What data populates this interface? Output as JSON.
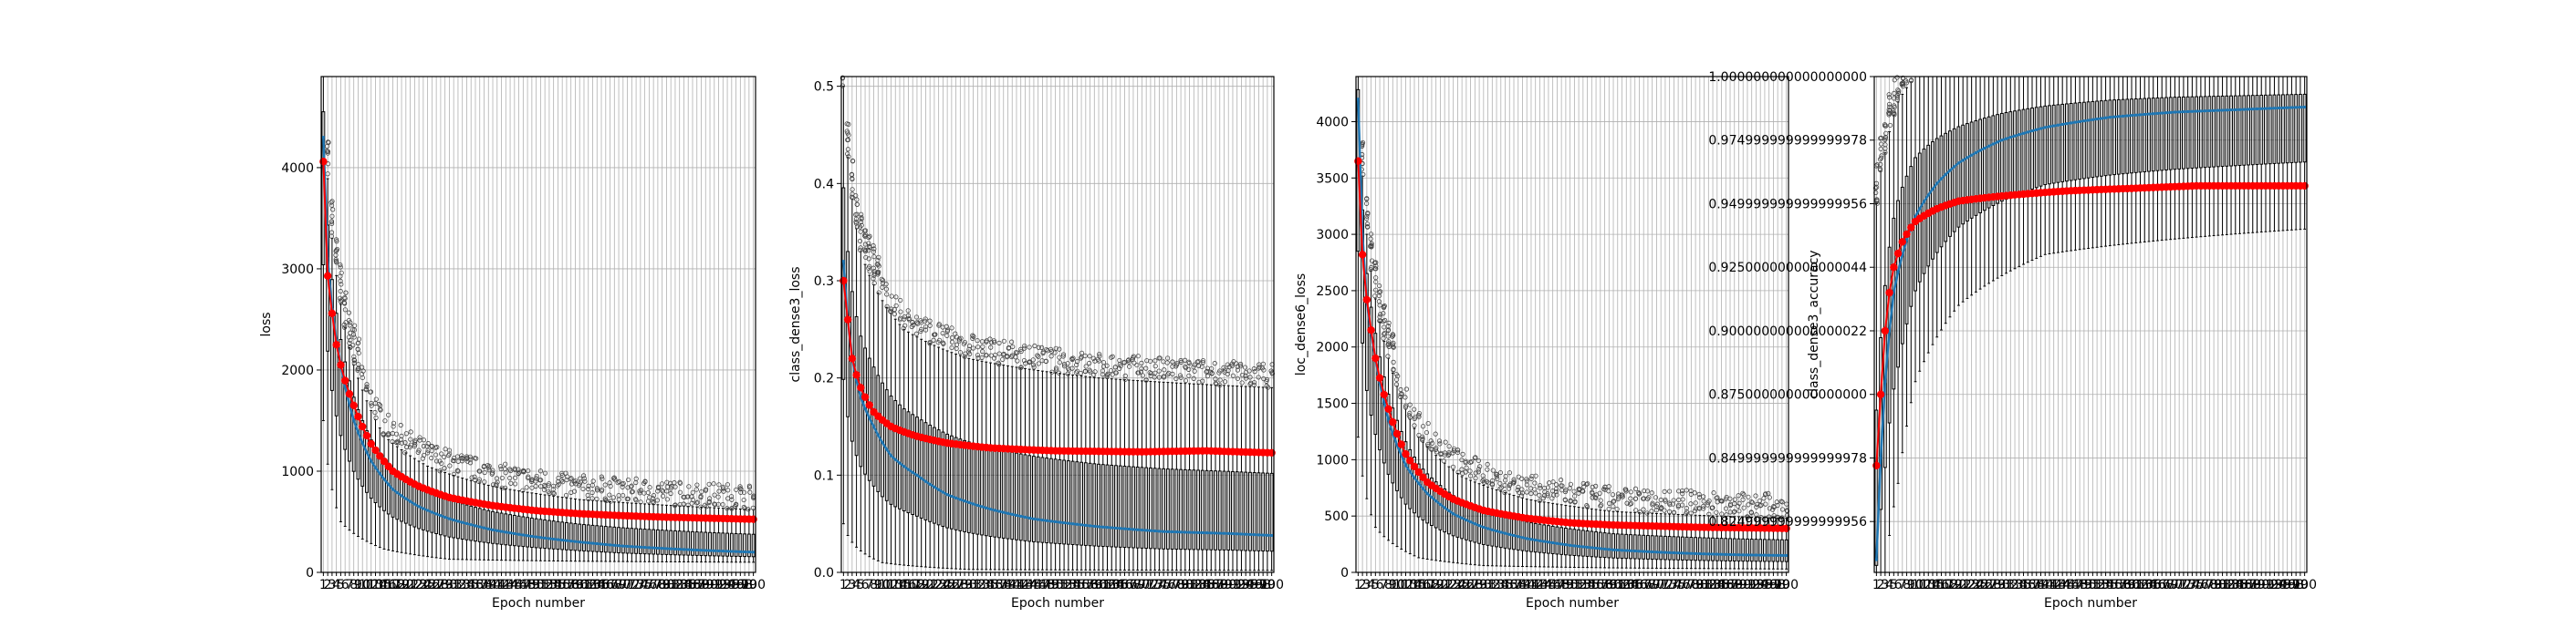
{
  "chart_data": [
    {
      "type": "box",
      "title": "",
      "xlabel": "Epoch number",
      "ylabel": "loss",
      "ylim": [
        0,
        4900
      ],
      "yticks": [
        0,
        1000,
        2000,
        3000,
        4000
      ],
      "n_epochs": 100,
      "series": [
        {
          "name": "",
          "kind": "median",
          "color": "#1f77b4",
          "anchors": [
            [
              1,
              4300
            ],
            [
              2,
              3100
            ],
            [
              3,
              2600
            ],
            [
              5,
              2050
            ],
            [
              8,
              1500
            ],
            [
              12,
              1100
            ],
            [
              17,
              820
            ],
            [
              23,
              650
            ],
            [
              30,
              530
            ],
            [
              40,
              420
            ],
            [
              50,
              350
            ],
            [
              60,
              300
            ],
            [
              70,
              260
            ],
            [
              80,
              235
            ],
            [
              90,
              215
            ],
            [
              100,
              200
            ]
          ]
        },
        {
          "name": "",
          "kind": "mean",
          "color": "#ff0000",
          "anchors": [
            [
              1,
              4060
            ],
            [
              2,
              2930
            ],
            [
              3,
              2560
            ],
            [
              4,
              2250
            ],
            [
              5,
              2050
            ],
            [
              8,
              1650
            ],
            [
              12,
              1270
            ],
            [
              17,
              1000
            ],
            [
              23,
              850
            ],
            [
              30,
              740
            ],
            [
              40,
              660
            ],
            [
              50,
              610
            ],
            [
              60,
              580
            ],
            [
              70,
              560
            ],
            [
              80,
              545
            ],
            [
              90,
              535
            ],
            [
              100,
              525
            ]
          ]
        }
      ],
      "whiskers": {
        "upper": [
          [
            1,
            4900
          ],
          [
            3,
            3300
          ],
          [
            8,
            2050
          ],
          [
            15,
            1350
          ],
          [
            25,
            1050
          ],
          [
            40,
            850
          ],
          [
            60,
            720
          ],
          [
            100,
            620
          ]
        ],
        "lower": [
          [
            1,
            1500
          ],
          [
            5,
            500
          ],
          [
            15,
            230
          ],
          [
            30,
            130
          ],
          [
            60,
            110
          ],
          [
            100,
            100
          ]
        ]
      }
    },
    {
      "type": "box",
      "title": "",
      "xlabel": "Epoch number",
      "ylabel": "class_dense3_loss",
      "ylim": [
        0,
        0.51
      ],
      "yticks": [
        0.0,
        0.1,
        0.2,
        0.3,
        0.4,
        0.5
      ],
      "n_epochs": 100,
      "series": [
        {
          "name": "",
          "kind": "median",
          "color": "#1f77b4",
          "anchors": [
            [
              1,
              0.32
            ],
            [
              2,
              0.26
            ],
            [
              3,
              0.22
            ],
            [
              5,
              0.18
            ],
            [
              8,
              0.15
            ],
            [
              12,
              0.12
            ],
            [
              18,
              0.1
            ],
            [
              25,
              0.08
            ],
            [
              35,
              0.065
            ],
            [
              45,
              0.055
            ],
            [
              60,
              0.047
            ],
            [
              75,
              0.042
            ],
            [
              90,
              0.04
            ],
            [
              100,
              0.038
            ]
          ]
        },
        {
          "name": "",
          "kind": "mean",
          "color": "#ff0000",
          "anchors": [
            [
              1,
              0.3
            ],
            [
              2,
              0.26
            ],
            [
              3,
              0.22
            ],
            [
              5,
              0.19
            ],
            [
              8,
              0.165
            ],
            [
              12,
              0.15
            ],
            [
              18,
              0.14
            ],
            [
              25,
              0.133
            ],
            [
              35,
              0.128
            ],
            [
              50,
              0.125
            ],
            [
              70,
              0.124
            ],
            [
              85,
              0.125
            ],
            [
              100,
              0.123
            ]
          ]
        }
      ],
      "whiskers": {
        "upper": [
          [
            1,
            0.5
          ],
          [
            5,
            0.33
          ],
          [
            15,
            0.25
          ],
          [
            30,
            0.22
          ],
          [
            60,
            0.2
          ],
          [
            100,
            0.19
          ]
        ],
        "lower": [
          [
            1,
            0.05
          ],
          [
            10,
            0.01
          ],
          [
            30,
            0.003
          ],
          [
            100,
            0.002
          ]
        ]
      }
    },
    {
      "type": "box",
      "title": "",
      "xlabel": "Epoch number",
      "ylabel": "loc_dense6_loss",
      "ylim": [
        0,
        4400
      ],
      "yticks": [
        0,
        500,
        1000,
        1500,
        2000,
        2500,
        3000,
        3500,
        4000
      ],
      "n_epochs": 100,
      "series": [
        {
          "name": "",
          "kind": "median",
          "color": "#1f77b4",
          "anchors": [
            [
              1,
              4200
            ],
            [
              2,
              3000
            ],
            [
              3,
              2400
            ],
            [
              5,
              1900
            ],
            [
              8,
              1350
            ],
            [
              12,
              950
            ],
            [
              17,
              700
            ],
            [
              23,
              520
            ],
            [
              30,
              400
            ],
            [
              40,
              300
            ],
            [
              50,
              240
            ],
            [
              60,
              200
            ],
            [
              70,
              180
            ],
            [
              80,
              165
            ],
            [
              90,
              155
            ],
            [
              100,
              150
            ]
          ]
        },
        {
          "name": "",
          "kind": "mean",
          "color": "#ff0000",
          "anchors": [
            [
              1,
              3650
            ],
            [
              2,
              2820
            ],
            [
              3,
              2420
            ],
            [
              4,
              2150
            ],
            [
              5,
              1900
            ],
            [
              8,
              1450
            ],
            [
              12,
              1050
            ],
            [
              17,
              800
            ],
            [
              23,
              650
            ],
            [
              30,
              550
            ],
            [
              40,
              480
            ],
            [
              50,
              440
            ],
            [
              60,
              420
            ],
            [
              70,
              410
            ],
            [
              80,
              400
            ],
            [
              90,
              395
            ],
            [
              100,
              390
            ]
          ]
        }
      ],
      "whiskers": {
        "upper": [
          [
            1,
            4400
          ],
          [
            3,
            3000
          ],
          [
            8,
            1900
          ],
          [
            15,
            1200
          ],
          [
            25,
            850
          ],
          [
            40,
            650
          ],
          [
            60,
            540
          ],
          [
            100,
            480
          ]
        ],
        "lower": [
          [
            1,
            1200
          ],
          [
            5,
            400
          ],
          [
            15,
            130
          ],
          [
            30,
            60
          ],
          [
            60,
            40
          ],
          [
            100,
            30
          ]
        ]
      }
    },
    {
      "type": "box",
      "title": "",
      "xlabel": "Epoch number",
      "ylabel": "class_dense3_accuracy",
      "ylim": [
        0.805,
        1.0
      ],
      "yticks": [
        0.825,
        0.85,
        0.875,
        0.9,
        0.925,
        0.95,
        0.975,
        1.0
      ],
      "n_epochs": 100,
      "series": [
        {
          "name": "",
          "kind": "median",
          "color": "#1f77b4",
          "anchors": [
            [
              1,
              0.81
            ],
            [
              2,
              0.85
            ],
            [
              3,
              0.88
            ],
            [
              4,
              0.9
            ],
            [
              5,
              0.915
            ],
            [
              7,
              0.93
            ],
            [
              10,
              0.945
            ],
            [
              15,
              0.958
            ],
            [
              20,
              0.966
            ],
            [
              30,
              0.975
            ],
            [
              40,
              0.98
            ],
            [
              55,
              0.984
            ],
            [
              70,
              0.986
            ],
            [
              85,
              0.987
            ],
            [
              100,
              0.988
            ]
          ]
        },
        {
          "name": "",
          "kind": "mean",
          "color": "#ff0000",
          "anchors": [
            [
              1,
              0.847
            ],
            [
              2,
              0.875
            ],
            [
              3,
              0.9
            ],
            [
              4,
              0.915
            ],
            [
              5,
              0.925
            ],
            [
              7,
              0.935
            ],
            [
              10,
              0.943
            ],
            [
              15,
              0.948
            ],
            [
              20,
              0.951
            ],
            [
              30,
              0.953
            ],
            [
              45,
              0.955
            ],
            [
              60,
              0.956
            ],
            [
              75,
              0.957
            ],
            [
              100,
              0.957
            ]
          ]
        }
      ],
      "whiskers": {
        "upper": [
          [
            1,
            0.95
          ],
          [
            3,
            0.97
          ],
          [
            6,
            0.99
          ],
          [
            10,
            1.0
          ],
          [
            100,
            1.0
          ]
        ],
        "lower": [
          [
            1,
            0.805
          ],
          [
            3,
            0.805
          ],
          [
            6,
            0.84
          ],
          [
            10,
            0.88
          ],
          [
            20,
            0.91
          ],
          [
            40,
            0.93
          ],
          [
            100,
            0.94
          ]
        ]
      }
    }
  ]
}
